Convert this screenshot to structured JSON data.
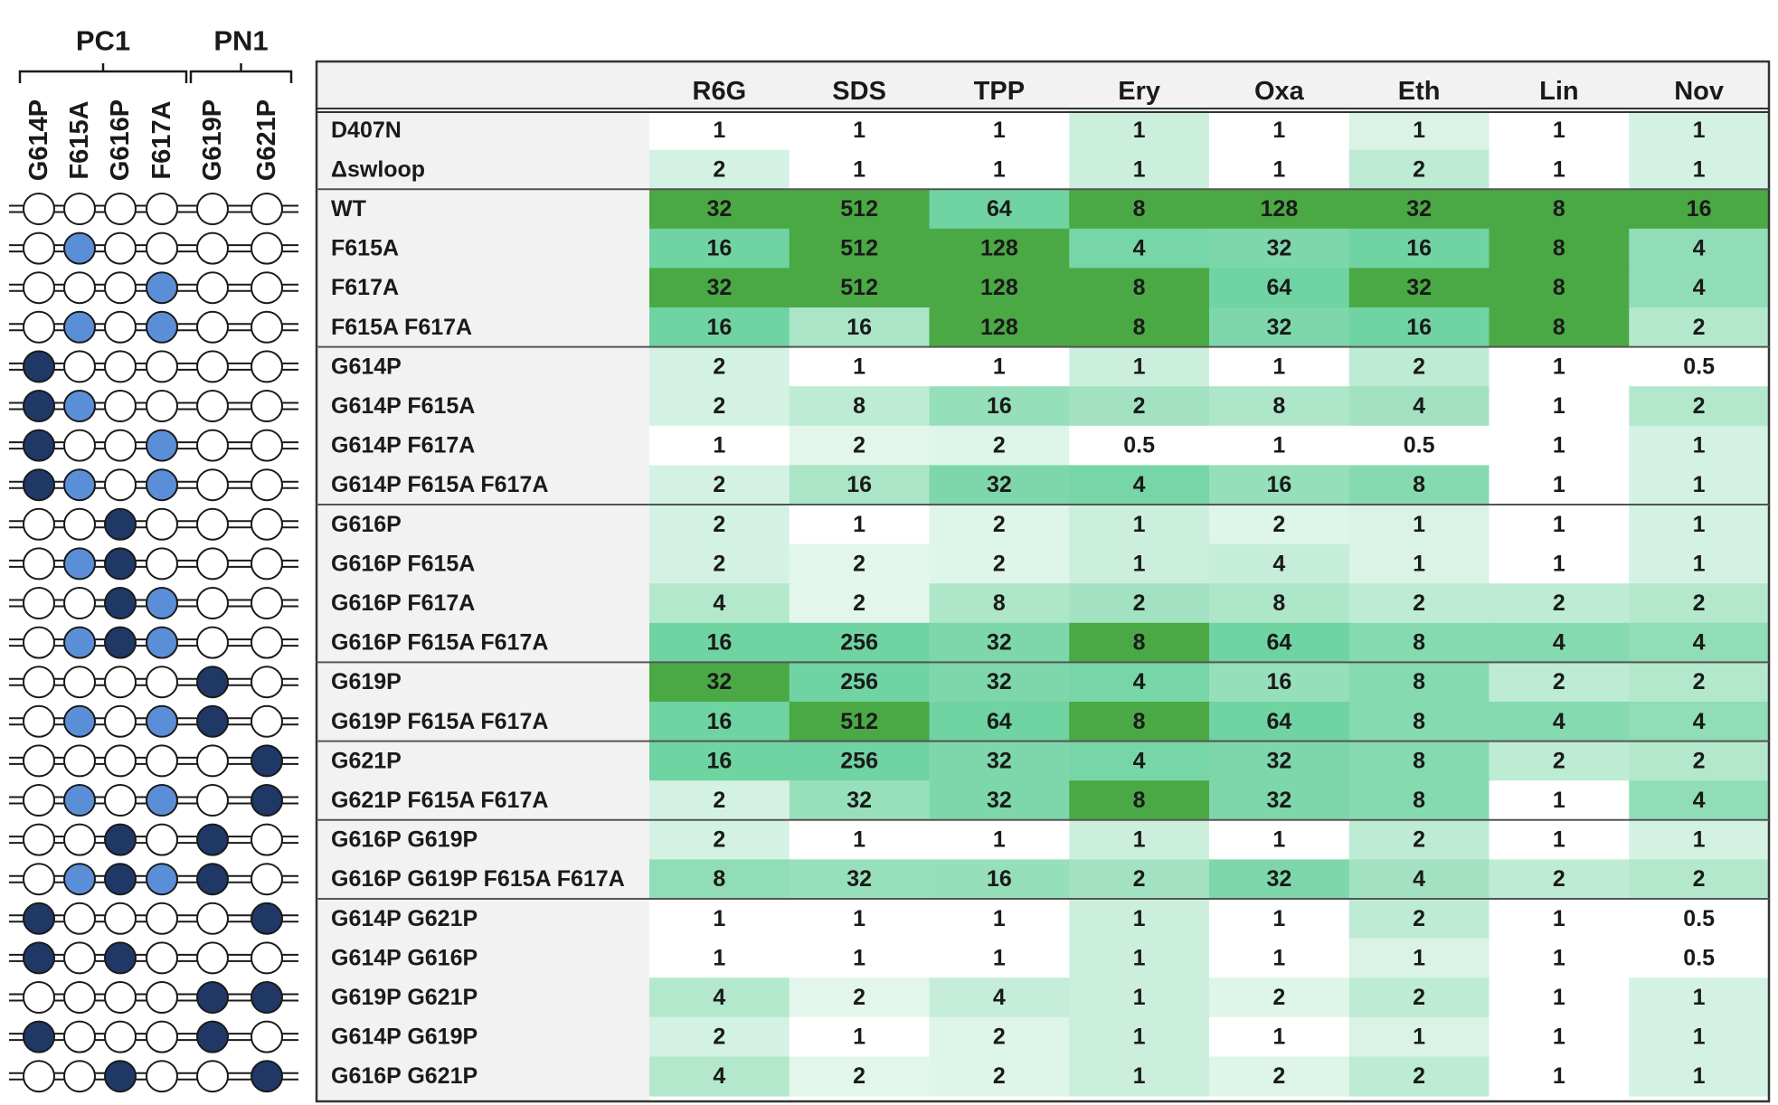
{
  "chart_data": {
    "type": "heatmap",
    "title": "",
    "xlabel": "",
    "ylabel": "",
    "group_labels": [
      "PC1",
      "PN1"
    ],
    "position_labels": [
      "G614P",
      "F615A",
      "G616P",
      "F617A",
      "G619P",
      "G621P"
    ],
    "columns": [
      "R6G",
      "SDS",
      "TPP",
      "Ery",
      "Oxa",
      "Eth",
      "Lin",
      "Nov"
    ],
    "rows": [
      {
        "label": "D407N",
        "values": [
          "1",
          "1",
          "1",
          "1",
          "1",
          "1",
          "1",
          "1"
        ],
        "dots": [
          "none",
          "none",
          "none",
          "none",
          "none",
          "none"
        ]
      },
      {
        "label": "Δswloop",
        "values": [
          "2",
          "1",
          "1",
          "1",
          "1",
          "2",
          "1",
          "1"
        ],
        "dots": [
          "none",
          "none",
          "none",
          "none",
          "none",
          "none"
        ]
      },
      {
        "label": "WT",
        "values": [
          "32",
          "512",
          "64",
          "8",
          "128",
          "32",
          "8",
          "16"
        ],
        "dots": [
          "open",
          "open",
          "open",
          "open",
          "open",
          "open"
        ]
      },
      {
        "label": "F615A",
        "values": [
          "16",
          "512",
          "128",
          "4",
          "32",
          "16",
          "8",
          "4"
        ],
        "dots": [
          "open",
          "ala",
          "open",
          "open",
          "open",
          "open"
        ]
      },
      {
        "label": "F617A",
        "values": [
          "32",
          "512",
          "128",
          "8",
          "64",
          "32",
          "8",
          "4"
        ],
        "dots": [
          "open",
          "open",
          "open",
          "ala",
          "open",
          "open"
        ]
      },
      {
        "label": "F615A F617A",
        "values": [
          "16",
          "16",
          "128",
          "8",
          "32",
          "16",
          "8",
          "2"
        ],
        "dots": [
          "open",
          "ala",
          "open",
          "ala",
          "open",
          "open"
        ]
      },
      {
        "label": "G614P",
        "values": [
          "2",
          "1",
          "1",
          "1",
          "1",
          "2",
          "1",
          "0.5"
        ],
        "dots": [
          "pro",
          "open",
          "open",
          "open",
          "open",
          "open"
        ]
      },
      {
        "label": "G614P F615A",
        "values": [
          "2",
          "8",
          "16",
          "2",
          "8",
          "4",
          "1",
          "2"
        ],
        "dots": [
          "pro",
          "ala",
          "open",
          "open",
          "open",
          "open"
        ]
      },
      {
        "label": "G614P F617A",
        "values": [
          "1",
          "2",
          "2",
          "0.5",
          "1",
          "0.5",
          "1",
          "1"
        ],
        "dots": [
          "pro",
          "open",
          "open",
          "ala",
          "open",
          "open"
        ]
      },
      {
        "label": "G614P F615A F617A",
        "values": [
          "2",
          "16",
          "32",
          "4",
          "16",
          "8",
          "1",
          "1"
        ],
        "dots": [
          "pro",
          "ala",
          "open",
          "ala",
          "open",
          "open"
        ]
      },
      {
        "label": "G616P",
        "values": [
          "2",
          "1",
          "2",
          "1",
          "2",
          "1",
          "1",
          "1"
        ],
        "dots": [
          "open",
          "open",
          "pro",
          "open",
          "open",
          "open"
        ]
      },
      {
        "label": "G616P F615A",
        "values": [
          "2",
          "2",
          "2",
          "1",
          "4",
          "1",
          "1",
          "1"
        ],
        "dots": [
          "open",
          "ala",
          "pro",
          "open",
          "open",
          "open"
        ]
      },
      {
        "label": "G616P F617A",
        "values": [
          "4",
          "2",
          "8",
          "2",
          "8",
          "2",
          "2",
          "2"
        ],
        "dots": [
          "open",
          "open",
          "pro",
          "ala",
          "open",
          "open"
        ]
      },
      {
        "label": "G616P F615A F617A",
        "values": [
          "16",
          "256",
          "32",
          "8",
          "64",
          "8",
          "4",
          "4"
        ],
        "dots": [
          "open",
          "ala",
          "pro",
          "ala",
          "open",
          "open"
        ]
      },
      {
        "label": "G619P",
        "values": [
          "32",
          "256",
          "32",
          "4",
          "16",
          "8",
          "2",
          "2"
        ],
        "dots": [
          "open",
          "open",
          "open",
          "open",
          "pro",
          "open"
        ]
      },
      {
        "label": "G619P F615A F617A",
        "values": [
          "16",
          "512",
          "64",
          "8",
          "64",
          "8",
          "4",
          "4"
        ],
        "dots": [
          "open",
          "ala",
          "open",
          "ala",
          "pro",
          "open"
        ]
      },
      {
        "label": "G621P",
        "values": [
          "16",
          "256",
          "32",
          "4",
          "32",
          "8",
          "2",
          "2"
        ],
        "dots": [
          "open",
          "open",
          "open",
          "open",
          "open",
          "pro"
        ]
      },
      {
        "label": "G621P F615A F617A",
        "values": [
          "2",
          "32",
          "32",
          "8",
          "32",
          "8",
          "1",
          "4"
        ],
        "dots": [
          "open",
          "ala",
          "open",
          "ala",
          "open",
          "pro"
        ]
      },
      {
        "label": "G616P G619P",
        "values": [
          "2",
          "1",
          "1",
          "1",
          "1",
          "2",
          "1",
          "1"
        ],
        "dots": [
          "open",
          "open",
          "pro",
          "open",
          "pro",
          "open"
        ]
      },
      {
        "label": "G616P G619P F615A F617A",
        "values": [
          "8",
          "32",
          "16",
          "2",
          "32",
          "4",
          "2",
          "2"
        ],
        "dots": [
          "open",
          "ala",
          "pro",
          "ala",
          "pro",
          "open"
        ]
      },
      {
        "label": "G614P G621P",
        "values": [
          "1",
          "1",
          "1",
          "1",
          "1",
          "2",
          "1",
          "0.5"
        ],
        "dots": [
          "pro",
          "open",
          "open",
          "open",
          "open",
          "pro"
        ]
      },
      {
        "label": "G614P G616P",
        "values": [
          "1",
          "1",
          "1",
          "1",
          "1",
          "1",
          "1",
          "0.5"
        ],
        "dots": [
          "pro",
          "open",
          "pro",
          "open",
          "open",
          "open"
        ]
      },
      {
        "label": "G619P G621P",
        "values": [
          "4",
          "2",
          "4",
          "1",
          "2",
          "2",
          "1",
          "1"
        ],
        "dots": [
          "open",
          "open",
          "open",
          "open",
          "pro",
          "pro"
        ]
      },
      {
        "label": "G614P G619P",
        "values": [
          "2",
          "1",
          "2",
          "1",
          "1",
          "1",
          "1",
          "1"
        ],
        "dots": [
          "pro",
          "open",
          "open",
          "open",
          "pro",
          "open"
        ]
      },
      {
        "label": "G616P G621P",
        "values": [
          "4",
          "2",
          "2",
          "1",
          "2",
          "2",
          "1",
          "1"
        ],
        "dots": [
          "open",
          "open",
          "pro",
          "open",
          "open",
          "pro"
        ]
      }
    ],
    "row_groups": [
      [
        0,
        1
      ],
      [
        2,
        5
      ],
      [
        6,
        9
      ],
      [
        10,
        13
      ],
      [
        14,
        15
      ],
      [
        16,
        17
      ],
      [
        18,
        19
      ],
      [
        20,
        24
      ]
    ],
    "colors": {
      "scale_light": "#f6fcf8",
      "scale_mid": "#6fd3a2",
      "scale_dark": "#4aa944",
      "proline_dot": "#1f3866",
      "alanine_dot": "#5a8fd8",
      "open_dot": "#ffffff",
      "label_column_bg": "#f2f2f2"
    }
  }
}
